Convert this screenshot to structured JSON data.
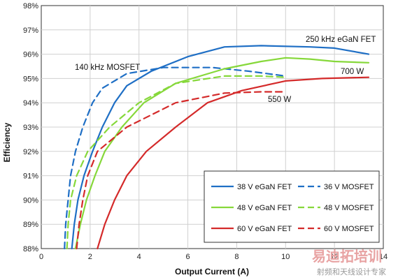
{
  "chart_data": {
    "type": "line",
    "xlabel": "Output Current (A)",
    "ylabel": "Efficiency",
    "xlim": [
      0,
      14
    ],
    "ylim": [
      88,
      98
    ],
    "xticks": [
      "0",
      "2",
      "4",
      "6",
      "8",
      "10",
      "12",
      "14"
    ],
    "yticks": [
      "88%",
      "89%",
      "90%",
      "91%",
      "92%",
      "93%",
      "94%",
      "95%",
      "96%",
      "97%",
      "98%"
    ],
    "grid": true,
    "legend_position": "bottom-right",
    "annotations": [
      "250 kHz eGaN FET",
      "140 kHz MOSFET",
      "700 W",
      "550 W"
    ],
    "series": [
      {
        "name": "38 V eGaN FET",
        "color": "#1f6fc5",
        "dash": false,
        "points": [
          [
            1.25,
            88
          ],
          [
            1.35,
            89
          ],
          [
            1.5,
            90
          ],
          [
            1.75,
            91
          ],
          [
            2.1,
            92
          ],
          [
            2.5,
            93
          ],
          [
            3,
            94
          ],
          [
            3.5,
            94.7
          ],
          [
            4.5,
            95.3
          ],
          [
            6,
            95.9
          ],
          [
            7.5,
            96.3
          ],
          [
            9,
            96.35
          ],
          [
            11,
            96.3
          ],
          [
            12,
            96.25
          ],
          [
            13.4,
            96.0
          ]
        ]
      },
      {
        "name": "36 V MOSFET",
        "color": "#1f6fc5",
        "dash": true,
        "points": [
          [
            0.95,
            88
          ],
          [
            1,
            89
          ],
          [
            1.1,
            90
          ],
          [
            1.2,
            91
          ],
          [
            1.4,
            92
          ],
          [
            1.7,
            93
          ],
          [
            2.1,
            94
          ],
          [
            2.5,
            94.6
          ],
          [
            3.5,
            95.2
          ],
          [
            5,
            95.45
          ],
          [
            7,
            95.45
          ],
          [
            8.5,
            95.3
          ],
          [
            10,
            95.1
          ]
        ]
      },
      {
        "name": "48 V eGaN FET",
        "color": "#86d83a",
        "dash": false,
        "points": [
          [
            1.4,
            88
          ],
          [
            1.6,
            89
          ],
          [
            1.85,
            90
          ],
          [
            2.2,
            91
          ],
          [
            2.6,
            92
          ],
          [
            3.3,
            93
          ],
          [
            4.2,
            94
          ],
          [
            5.5,
            94.8
          ],
          [
            7.5,
            95.4
          ],
          [
            9,
            95.7
          ],
          [
            10,
            95.85
          ],
          [
            11,
            95.8
          ],
          [
            12,
            95.7
          ],
          [
            13.4,
            95.65
          ]
        ]
      },
      {
        "name": "48 V MOSFET",
        "color": "#86d83a",
        "dash": true,
        "points": [
          [
            1.05,
            88
          ],
          [
            1.1,
            89
          ],
          [
            1.2,
            90
          ],
          [
            1.45,
            91
          ],
          [
            1.9,
            92
          ],
          [
            2.8,
            93
          ],
          [
            4,
            94
          ],
          [
            5.5,
            94.8
          ],
          [
            7.5,
            95.1
          ],
          [
            9,
            95.1
          ],
          [
            10,
            95.05
          ]
        ]
      },
      {
        "name": "60 V eGaN FET",
        "color": "#d42a2a",
        "dash": false,
        "points": [
          [
            2.3,
            88
          ],
          [
            2.6,
            89
          ],
          [
            3,
            90
          ],
          [
            3.5,
            91
          ],
          [
            4.3,
            92
          ],
          [
            5.5,
            93
          ],
          [
            6.8,
            94
          ],
          [
            8.2,
            94.5
          ],
          [
            10,
            94.9
          ],
          [
            11.5,
            95.0
          ],
          [
            13.4,
            95.05
          ]
        ]
      },
      {
        "name": "60 V MOSFET",
        "color": "#d42a2a",
        "dash": true,
        "points": [
          [
            1.45,
            88
          ],
          [
            1.55,
            89
          ],
          [
            1.7,
            90
          ],
          [
            1.9,
            91
          ],
          [
            2.3,
            92
          ],
          [
            3.5,
            93
          ],
          [
            5.5,
            94
          ],
          [
            7.5,
            94.4
          ],
          [
            9,
            94.45
          ],
          [
            10,
            94.45
          ]
        ]
      }
    ]
  },
  "watermark": {
    "cn_brand": "易迪拓培训",
    "cn_sub": "射频和天线设计专家"
  }
}
